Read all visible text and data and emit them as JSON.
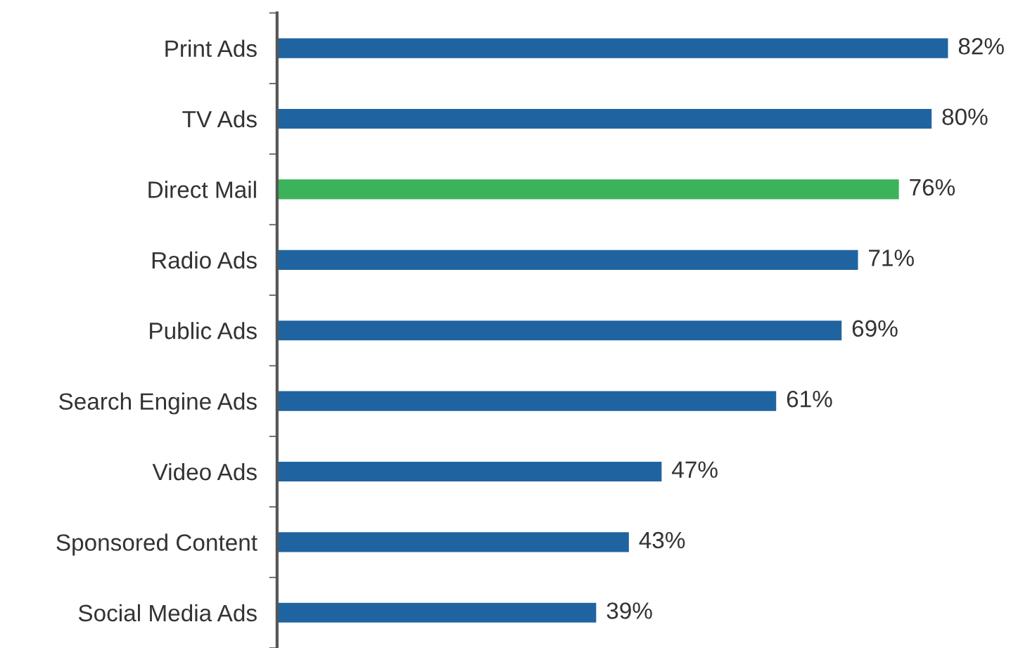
{
  "chart_data": {
    "type": "bar",
    "orientation": "horizontal",
    "categories": [
      "Print Ads",
      "TV Ads",
      "Direct Mail",
      "Radio Ads",
      "Public Ads",
      "Search Engine Ads",
      "Video Ads",
      "Sponsored Content",
      "Social Media Ads"
    ],
    "values": [
      82,
      80,
      76,
      71,
      69,
      61,
      47,
      43,
      39
    ],
    "colors": [
      "#1f64a0",
      "#1f64a0",
      "#3cb35a",
      "#1f64a0",
      "#1f64a0",
      "#1f64a0",
      "#1f64a0",
      "#1f64a0",
      "#1f64a0"
    ],
    "value_labels": [
      "82%",
      "80%",
      "76%",
      "71%",
      "69%",
      "61%",
      "47%",
      "43%",
      "39%"
    ],
    "grid": false,
    "legend": false
  }
}
